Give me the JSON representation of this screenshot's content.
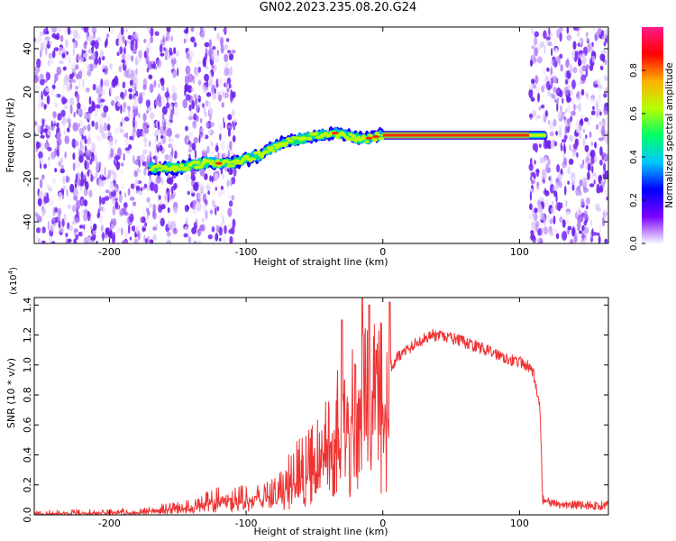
{
  "title": "GN02.2023.235.08.20.G24",
  "colors": {
    "snr_line": "#ee3333",
    "speckle": "#7b2ff7",
    "colorbar_stops": [
      "#f8f8ff",
      "#7b00ff",
      "#0000ff",
      "#00c8ff",
      "#00ff66",
      "#b8ff00",
      "#ffb000",
      "#ff0000",
      "#ff1a8a"
    ]
  },
  "chart_data": [
    {
      "type": "heatmap",
      "x": {
        "label": "Height of straight line (km)",
        "range": [
          -255,
          165
        ],
        "ticks": [
          -200,
          -100,
          0,
          100
        ]
      },
      "y": {
        "label": "Frequency (Hz)",
        "range": [
          -50,
          50
        ],
        "ticks": [
          -40,
          -20,
          0,
          20,
          40
        ]
      },
      "colorbar": {
        "label": "Normalized spectral amplitude",
        "range": [
          0,
          1
        ],
        "ticks": [
          "0.0",
          "0.2",
          "0.4",
          "0.6",
          "0.8"
        ]
      },
      "trace": [
        {
          "x": -170,
          "y": -15
        },
        {
          "x": -150,
          "y": -15
        },
        {
          "x": -130,
          "y": -13
        },
        {
          "x": -110,
          "y": -13
        },
        {
          "x": -90,
          "y": -9
        },
        {
          "x": -70,
          "y": -3
        },
        {
          "x": -55,
          "y": -1
        },
        {
          "x": -35,
          "y": 1
        },
        {
          "x": -15,
          "y": -2
        },
        {
          "x": 0,
          "y": 0
        },
        {
          "x": 50,
          "y": 0
        },
        {
          "x": 105,
          "y": 0
        },
        {
          "x": 118,
          "y": 0
        }
      ],
      "noise_regions": [
        [
          -255,
          -150
        ],
        [
          -145,
          -108
        ],
        [
          108,
          165
        ]
      ]
    },
    {
      "type": "line",
      "x": {
        "label": "Height of straight line (km)",
        "range": [
          -255,
          165
        ],
        "ticks": [
          -200,
          -100,
          0,
          100
        ]
      },
      "y": {
        "label": "SNR (10 * v/v)",
        "multiplier": "(x10",
        "multiplier_exp": "4",
        "mult_close": ")",
        "range": [
          0,
          1.45
        ],
        "ticks": [
          "0.0",
          "0.2",
          "0.4",
          "0.6",
          "0.8",
          "1.0",
          "1.2",
          "1.4"
        ]
      },
      "envelope": [
        {
          "x": -255,
          "y": 0.01
        },
        {
          "x": -180,
          "y": 0.02
        },
        {
          "x": -140,
          "y": 0.06
        },
        {
          "x": -120,
          "y": 0.12
        },
        {
          "x": -100,
          "y": 0.12
        },
        {
          "x": -80,
          "y": 0.15
        },
        {
          "x": -60,
          "y": 0.3
        },
        {
          "x": -40,
          "y": 0.5
        },
        {
          "x": -30,
          "y": 0.7
        },
        {
          "x": -20,
          "y": 0.8
        },
        {
          "x": -10,
          "y": 0.85
        },
        {
          "x": 0,
          "y": 0.9
        },
        {
          "x": 10,
          "y": 1.05
        },
        {
          "x": 25,
          "y": 1.15
        },
        {
          "x": 35,
          "y": 1.2
        },
        {
          "x": 50,
          "y": 1.18
        },
        {
          "x": 70,
          "y": 1.12
        },
        {
          "x": 90,
          "y": 1.05
        },
        {
          "x": 105,
          "y": 1.0
        },
        {
          "x": 110,
          "y": 0.95
        },
        {
          "x": 115,
          "y": 0.7
        },
        {
          "x": 117,
          "y": 0.1
        },
        {
          "x": 125,
          "y": 0.07
        },
        {
          "x": 165,
          "y": 0.06
        }
      ],
      "spikes": [
        {
          "x": -30,
          "y": 1.3
        },
        {
          "x": -28,
          "y": 0.9
        },
        {
          "x": -15,
          "y": 1.45
        },
        {
          "x": -10,
          "y": 1.4
        },
        {
          "x": 5,
          "y": 1.42
        },
        {
          "x": -20,
          "y": 1.0
        },
        {
          "x": -5,
          "y": 1.1
        }
      ]
    }
  ]
}
